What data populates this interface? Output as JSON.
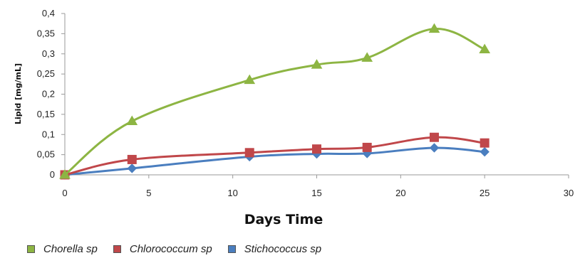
{
  "chart_data": {
    "type": "line",
    "xlabel": "Days Time",
    "ylabel": "Lipid   [mg/mL]",
    "xlim": [
      0,
      30
    ],
    "ylim": [
      0,
      0.4
    ],
    "x_ticks": [
      "0",
      "5",
      "10",
      "15",
      "20",
      "25",
      "30"
    ],
    "y_ticks": [
      "0",
      "0,05",
      "0,1",
      "0,15",
      "0,2",
      "0,25",
      "0,3",
      "0,35",
      "0,4"
    ],
    "grid": false,
    "legend_position": "bottom",
    "series": [
      {
        "name": "Chorella sp",
        "color": "#8DB543",
        "marker": "triangle",
        "x": [
          0,
          4,
          11,
          15,
          18,
          22,
          25
        ],
        "y": [
          0,
          0.133,
          0.235,
          0.273,
          0.29,
          0.362,
          0.311
        ]
      },
      {
        "name": "Chlorococcum sp",
        "color": "#C0474A",
        "marker": "square",
        "x": [
          0,
          4,
          11,
          15,
          18,
          22,
          25
        ],
        "y": [
          0,
          0.038,
          0.055,
          0.064,
          0.068,
          0.093,
          0.079
        ]
      },
      {
        "name": "Stichococcus sp",
        "color": "#4A7EBF",
        "marker": "diamond",
        "x": [
          0,
          4,
          11,
          15,
          18,
          22,
          25
        ],
        "y": [
          0,
          0.016,
          0.045,
          0.052,
          0.053,
          0.067,
          0.057
        ]
      }
    ]
  }
}
